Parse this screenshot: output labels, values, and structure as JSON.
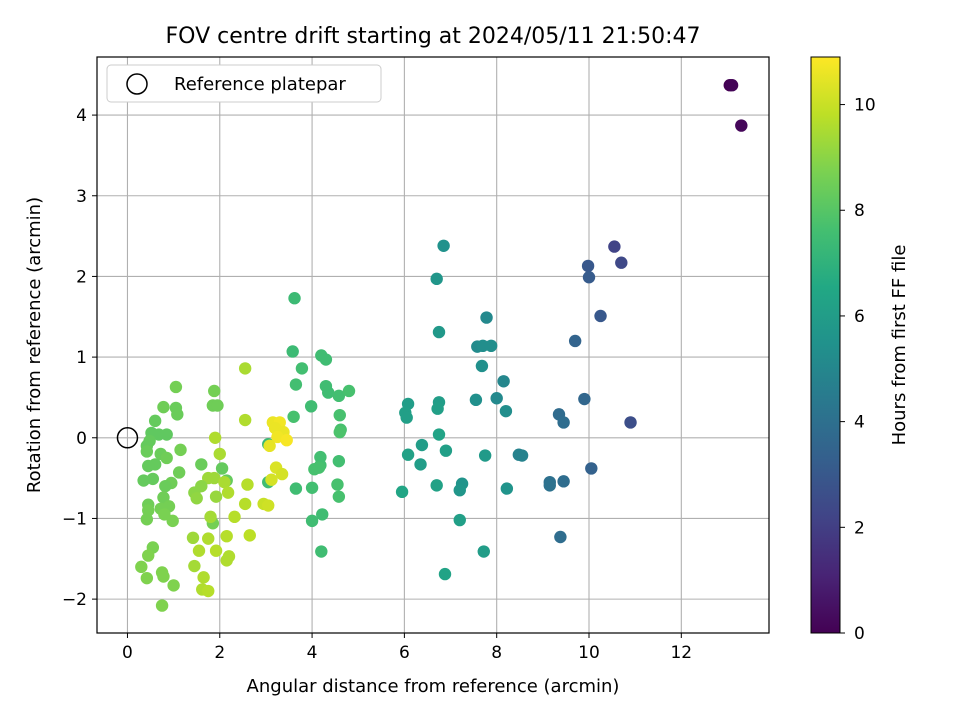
{
  "chart_data": {
    "type": "scatter",
    "title": "FOV centre drift starting at 2024/05/11 21:50:47",
    "xlabel": "Angular distance from reference (arcmin)",
    "ylabel": "Rotation from reference (arcmin)",
    "xlim": [
      -0.66,
      13.9
    ],
    "ylim": [
      -2.42,
      4.72
    ],
    "xticks": [
      0,
      2,
      4,
      6,
      8,
      10,
      12
    ],
    "yticks": [
      -2,
      -1,
      0,
      1,
      2,
      3,
      4
    ],
    "xtick_labels": [
      "0",
      "2",
      "4",
      "6",
      "8",
      "10",
      "12"
    ],
    "ytick_labels": [
      "−2",
      "−1",
      "0",
      "1",
      "2",
      "3",
      "4"
    ],
    "grid": true,
    "legend": {
      "placement": "top-left",
      "entries": [
        "Reference platepar"
      ]
    },
    "reference_point": {
      "x": 0,
      "y": 0
    },
    "colorbar": {
      "label": "Hours from first FF file",
      "range": [
        0,
        10.9
      ],
      "ticks": [
        0,
        2,
        4,
        6,
        8,
        10
      ],
      "tick_labels": [
        "0",
        "2",
        "4",
        "6",
        "8",
        "10"
      ],
      "colormap": "viridis"
    },
    "points": [
      {
        "x": 13.05,
        "y": 4.37,
        "h": 0.0
      },
      {
        "x": 13.1,
        "y": 4.37,
        "h": 0.1
      },
      {
        "x": 13.3,
        "y": 3.87,
        "h": 0.2
      },
      {
        "x": 10.55,
        "y": 2.37,
        "h": 2.2
      },
      {
        "x": 10.7,
        "y": 2.17,
        "h": 2.4
      },
      {
        "x": 9.98,
        "y": 2.13,
        "h": 3.0
      },
      {
        "x": 10.0,
        "y": 1.99,
        "h": 3.1
      },
      {
        "x": 10.25,
        "y": 1.51,
        "h": 3.0
      },
      {
        "x": 9.7,
        "y": 1.2,
        "h": 3.5
      },
      {
        "x": 10.9,
        "y": 0.19,
        "h": 2.6
      },
      {
        "x": 9.9,
        "y": 0.48,
        "h": 3.6
      },
      {
        "x": 9.35,
        "y": 0.29,
        "h": 3.8
      },
      {
        "x": 9.45,
        "y": 0.19,
        "h": 3.9
      },
      {
        "x": 10.05,
        "y": -0.38,
        "h": 3.4
      },
      {
        "x": 9.15,
        "y": -0.55,
        "h": 4.0
      },
      {
        "x": 9.45,
        "y": -0.54,
        "h": 3.9
      },
      {
        "x": 9.15,
        "y": -0.59,
        "h": 4.1
      },
      {
        "x": 9.38,
        "y": -1.23,
        "h": 3.9
      },
      {
        "x": 6.85,
        "y": 2.38,
        "h": 5.5
      },
      {
        "x": 6.7,
        "y": 1.97,
        "h": 5.7
      },
      {
        "x": 6.75,
        "y": 1.31,
        "h": 5.8
      },
      {
        "x": 7.78,
        "y": 1.49,
        "h": 5.1
      },
      {
        "x": 7.58,
        "y": 1.13,
        "h": 5.2
      },
      {
        "x": 7.7,
        "y": 1.14,
        "h": 5.3
      },
      {
        "x": 7.88,
        "y": 1.14,
        "h": 5.3
      },
      {
        "x": 7.68,
        "y": 0.89,
        "h": 5.4
      },
      {
        "x": 8.15,
        "y": 0.7,
        "h": 5.0
      },
      {
        "x": 8.0,
        "y": 0.49,
        "h": 5.1
      },
      {
        "x": 7.55,
        "y": 0.47,
        "h": 5.4
      },
      {
        "x": 8.2,
        "y": 0.33,
        "h": 5.3
      },
      {
        "x": 6.75,
        "y": 0.44,
        "h": 6.0
      },
      {
        "x": 6.72,
        "y": 0.36,
        "h": 6.1
      },
      {
        "x": 6.08,
        "y": 0.42,
        "h": 6.0
      },
      {
        "x": 6.02,
        "y": 0.31,
        "h": 6.1
      },
      {
        "x": 6.05,
        "y": 0.25,
        "h": 6.1
      },
      {
        "x": 6.75,
        "y": 0.04,
        "h": 6.3
      },
      {
        "x": 6.38,
        "y": -0.09,
        "h": 6.0
      },
      {
        "x": 6.9,
        "y": -0.16,
        "h": 6.1
      },
      {
        "x": 6.08,
        "y": -0.21,
        "h": 6.2
      },
      {
        "x": 7.75,
        "y": -0.22,
        "h": 5.9
      },
      {
        "x": 8.48,
        "y": -0.21,
        "h": 4.8
      },
      {
        "x": 8.55,
        "y": -0.22,
        "h": 4.8
      },
      {
        "x": 6.35,
        "y": -0.33,
        "h": 6.0
      },
      {
        "x": 7.25,
        "y": -0.57,
        "h": 5.6
      },
      {
        "x": 6.7,
        "y": -0.59,
        "h": 6.2
      },
      {
        "x": 7.2,
        "y": -0.65,
        "h": 5.7
      },
      {
        "x": 8.22,
        "y": -0.63,
        "h": 5.6
      },
      {
        "x": 5.95,
        "y": -0.67,
        "h": 6.4
      },
      {
        "x": 7.2,
        "y": -1.02,
        "h": 6.1
      },
      {
        "x": 7.72,
        "y": -1.41,
        "h": 6.0
      },
      {
        "x": 6.88,
        "y": -1.69,
        "h": 6.3
      },
      {
        "x": 3.62,
        "y": 1.73,
        "h": 7.4
      },
      {
        "x": 3.58,
        "y": 1.07,
        "h": 7.4
      },
      {
        "x": 4.2,
        "y": 1.02,
        "h": 7.5
      },
      {
        "x": 4.3,
        "y": 0.97,
        "h": 7.5
      },
      {
        "x": 3.78,
        "y": 0.86,
        "h": 7.6
      },
      {
        "x": 3.65,
        "y": 0.66,
        "h": 7.6
      },
      {
        "x": 4.3,
        "y": 0.64,
        "h": 7.5
      },
      {
        "x": 4.35,
        "y": 0.56,
        "h": 7.5
      },
      {
        "x": 4.58,
        "y": 0.52,
        "h": 7.6
      },
      {
        "x": 4.8,
        "y": 0.58,
        "h": 7.7
      },
      {
        "x": 3.98,
        "y": 0.39,
        "h": 7.5
      },
      {
        "x": 4.6,
        "y": 0.28,
        "h": 7.7
      },
      {
        "x": 3.6,
        "y": 0.26,
        "h": 7.7
      },
      {
        "x": 4.62,
        "y": 0.1,
        "h": 7.7
      },
      {
        "x": 4.6,
        "y": 0.07,
        "h": 7.8
      },
      {
        "x": 3.05,
        "y": -0.08,
        "h": 7.3
      },
      {
        "x": 4.18,
        "y": -0.24,
        "h": 7.6
      },
      {
        "x": 4.58,
        "y": -0.29,
        "h": 7.6
      },
      {
        "x": 4.18,
        "y": -0.34,
        "h": 7.6
      },
      {
        "x": 4.05,
        "y": -0.39,
        "h": 7.7
      },
      {
        "x": 4.15,
        "y": -0.37,
        "h": 7.7
      },
      {
        "x": 3.05,
        "y": -0.55,
        "h": 7.5
      },
      {
        "x": 4.0,
        "y": -0.62,
        "h": 7.6
      },
      {
        "x": 3.65,
        "y": -0.63,
        "h": 7.5
      },
      {
        "x": 4.55,
        "y": -0.58,
        "h": 7.7
      },
      {
        "x": 4.58,
        "y": -0.73,
        "h": 7.7
      },
      {
        "x": 4.22,
        "y": -0.95,
        "h": 7.5
      },
      {
        "x": 4.0,
        "y": -1.03,
        "h": 7.5
      },
      {
        "x": 4.2,
        "y": -1.41,
        "h": 7.5
      },
      {
        "x": 1.05,
        "y": 0.63,
        "h": 8.6
      },
      {
        "x": 1.88,
        "y": 0.58,
        "h": 8.6
      },
      {
        "x": 1.85,
        "y": 0.4,
        "h": 8.5
      },
      {
        "x": 1.95,
        "y": 0.4,
        "h": 8.5
      },
      {
        "x": 0.78,
        "y": 0.38,
        "h": 8.5
      },
      {
        "x": 1.05,
        "y": 0.37,
        "h": 8.4
      },
      {
        "x": 1.08,
        "y": 0.29,
        "h": 8.4
      },
      {
        "x": 0.6,
        "y": 0.21,
        "h": 8.3
      },
      {
        "x": 0.52,
        "y": 0.06,
        "h": 8.2
      },
      {
        "x": 0.68,
        "y": 0.04,
        "h": 8.2
      },
      {
        "x": 0.85,
        "y": 0.04,
        "h": 8.2
      },
      {
        "x": 0.48,
        "y": -0.04,
        "h": 8.3
      },
      {
        "x": 0.42,
        "y": -0.1,
        "h": 8.3
      },
      {
        "x": 0.42,
        "y": -0.17,
        "h": 8.4
      },
      {
        "x": 0.72,
        "y": -0.2,
        "h": 8.4
      },
      {
        "x": 0.85,
        "y": -0.25,
        "h": 8.5
      },
      {
        "x": 1.15,
        "y": -0.15,
        "h": 8.6
      },
      {
        "x": 0.6,
        "y": -0.33,
        "h": 8.3
      },
      {
        "x": 0.45,
        "y": -0.35,
        "h": 8.3
      },
      {
        "x": 1.12,
        "y": -0.43,
        "h": 8.5
      },
      {
        "x": 0.55,
        "y": -0.51,
        "h": 8.3
      },
      {
        "x": 0.35,
        "y": -0.53,
        "h": 8.3
      },
      {
        "x": 0.95,
        "y": -0.56,
        "h": 8.5
      },
      {
        "x": 0.82,
        "y": -0.6,
        "h": 8.4
      },
      {
        "x": 1.6,
        "y": -0.33,
        "h": 8.4
      },
      {
        "x": 2.05,
        "y": -0.38,
        "h": 8.3
      },
      {
        "x": 2.15,
        "y": -0.53,
        "h": 8.3
      },
      {
        "x": 0.78,
        "y": -0.74,
        "h": 8.5
      },
      {
        "x": 0.45,
        "y": -0.83,
        "h": 8.5
      },
      {
        "x": 0.45,
        "y": -0.9,
        "h": 8.6
      },
      {
        "x": 0.72,
        "y": -0.88,
        "h": 8.6
      },
      {
        "x": 0.9,
        "y": -0.85,
        "h": 8.6
      },
      {
        "x": 0.8,
        "y": -0.95,
        "h": 8.7
      },
      {
        "x": 0.42,
        "y": -1.01,
        "h": 8.6
      },
      {
        "x": 0.98,
        "y": -1.03,
        "h": 8.7
      },
      {
        "x": 1.85,
        "y": -1.06,
        "h": 8.6
      },
      {
        "x": 0.55,
        "y": -1.36,
        "h": 8.7
      },
      {
        "x": 0.45,
        "y": -1.46,
        "h": 8.8
      },
      {
        "x": 0.3,
        "y": -1.6,
        "h": 8.8
      },
      {
        "x": 0.42,
        "y": -1.74,
        "h": 8.8
      },
      {
        "x": 0.78,
        "y": -1.72,
        "h": 8.8
      },
      {
        "x": 0.75,
        "y": -1.67,
        "h": 8.8
      },
      {
        "x": 1.0,
        "y": -1.83,
        "h": 8.8
      },
      {
        "x": 0.75,
        "y": -2.08,
        "h": 8.8
      },
      {
        "x": 2.55,
        "y": 0.86,
        "h": 9.5
      },
      {
        "x": 2.55,
        "y": 0.22,
        "h": 9.6
      },
      {
        "x": 1.9,
        "y": 0.0,
        "h": 9.6
      },
      {
        "x": 1.75,
        "y": -0.5,
        "h": 9.3
      },
      {
        "x": 1.88,
        "y": -0.5,
        "h": 9.3
      },
      {
        "x": 2.0,
        "y": -0.2,
        "h": 9.5
      },
      {
        "x": 2.1,
        "y": -0.55,
        "h": 9.5
      },
      {
        "x": 1.6,
        "y": -0.6,
        "h": 9.0
      },
      {
        "x": 1.45,
        "y": -0.68,
        "h": 9.0
      },
      {
        "x": 1.5,
        "y": -0.75,
        "h": 9.1
      },
      {
        "x": 1.92,
        "y": -0.73,
        "h": 9.2
      },
      {
        "x": 2.18,
        "y": -0.68,
        "h": 9.6
      },
      {
        "x": 2.6,
        "y": -0.58,
        "h": 9.7
      },
      {
        "x": 2.55,
        "y": -0.82,
        "h": 9.7
      },
      {
        "x": 2.32,
        "y": -0.98,
        "h": 9.7
      },
      {
        "x": 1.8,
        "y": -0.98,
        "h": 9.4
      },
      {
        "x": 1.75,
        "y": -1.25,
        "h": 9.6
      },
      {
        "x": 1.42,
        "y": -1.24,
        "h": 9.3
      },
      {
        "x": 2.15,
        "y": -1.22,
        "h": 9.7
      },
      {
        "x": 2.65,
        "y": -1.21,
        "h": 9.8
      },
      {
        "x": 1.55,
        "y": -1.4,
        "h": 9.6
      },
      {
        "x": 1.92,
        "y": -1.4,
        "h": 9.7
      },
      {
        "x": 2.2,
        "y": -1.47,
        "h": 9.6
      },
      {
        "x": 2.15,
        "y": -1.52,
        "h": 9.6
      },
      {
        "x": 1.45,
        "y": -1.59,
        "h": 9.4
      },
      {
        "x": 1.65,
        "y": -1.73,
        "h": 9.6
      },
      {
        "x": 1.62,
        "y": -1.88,
        "h": 9.6
      },
      {
        "x": 1.75,
        "y": -1.9,
        "h": 9.7
      },
      {
        "x": 3.15,
        "y": 0.19,
        "h": 10.6
      },
      {
        "x": 3.3,
        "y": 0.19,
        "h": 10.7
      },
      {
        "x": 3.2,
        "y": 0.12,
        "h": 10.6
      },
      {
        "x": 3.38,
        "y": 0.07,
        "h": 10.6
      },
      {
        "x": 3.25,
        "y": 0.01,
        "h": 10.7
      },
      {
        "x": 3.45,
        "y": -0.03,
        "h": 10.8
      },
      {
        "x": 3.08,
        "y": -0.1,
        "h": 10.5
      },
      {
        "x": 3.22,
        "y": -0.37,
        "h": 10.3
      },
      {
        "x": 3.35,
        "y": -0.45,
        "h": 10.2
      },
      {
        "x": 3.12,
        "y": -0.52,
        "h": 10.2
      },
      {
        "x": 2.95,
        "y": -0.82,
        "h": 10.0
      },
      {
        "x": 3.05,
        "y": -0.84,
        "h": 10.1
      }
    ]
  }
}
